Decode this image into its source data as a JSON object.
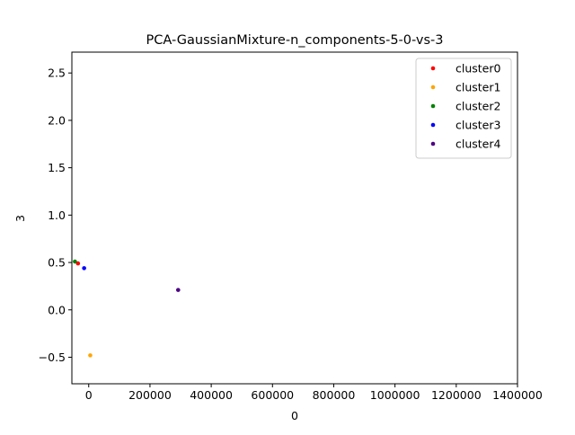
{
  "chart_data": {
    "type": "scatter",
    "title": "PCA-GaussianMixture-n_components-5-0-vs-3",
    "xlabel": "0",
    "ylabel": "3",
    "xlim": [
      -55000,
      1400000
    ],
    "ylim": [
      -0.78,
      2.72
    ],
    "x_ticks": [
      0,
      200000,
      400000,
      600000,
      800000,
      1000000,
      1200000,
      1400000
    ],
    "x_tick_labels": [
      "0",
      "200000",
      "400000",
      "600000",
      "800000",
      "1000000",
      "1200000",
      "1400000"
    ],
    "y_ticks": [
      -0.5,
      0.0,
      0.5,
      1.0,
      1.5,
      2.0,
      2.5
    ],
    "y_tick_labels": [
      "−0.5",
      "0.0",
      "0.5",
      "1.0",
      "1.5",
      "2.0",
      "2.5"
    ],
    "grid": false,
    "legend_position": "top-right",
    "series": [
      {
        "name": "cluster0",
        "color": "#ff0000",
        "points": [
          [
            -35000,
            0.49
          ]
        ]
      },
      {
        "name": "cluster1",
        "color": "#ffa500",
        "points": [
          [
            5000,
            -0.48
          ]
        ]
      },
      {
        "name": "cluster2",
        "color": "#008000",
        "points": [
          [
            -45000,
            0.51
          ]
        ]
      },
      {
        "name": "cluster3",
        "color": "#0000ff",
        "points": [
          [
            -15000,
            0.44
          ]
        ]
      },
      {
        "name": "cluster4",
        "color": "#4b0082",
        "points": [
          [
            292000,
            0.21
          ]
        ]
      }
    ]
  }
}
